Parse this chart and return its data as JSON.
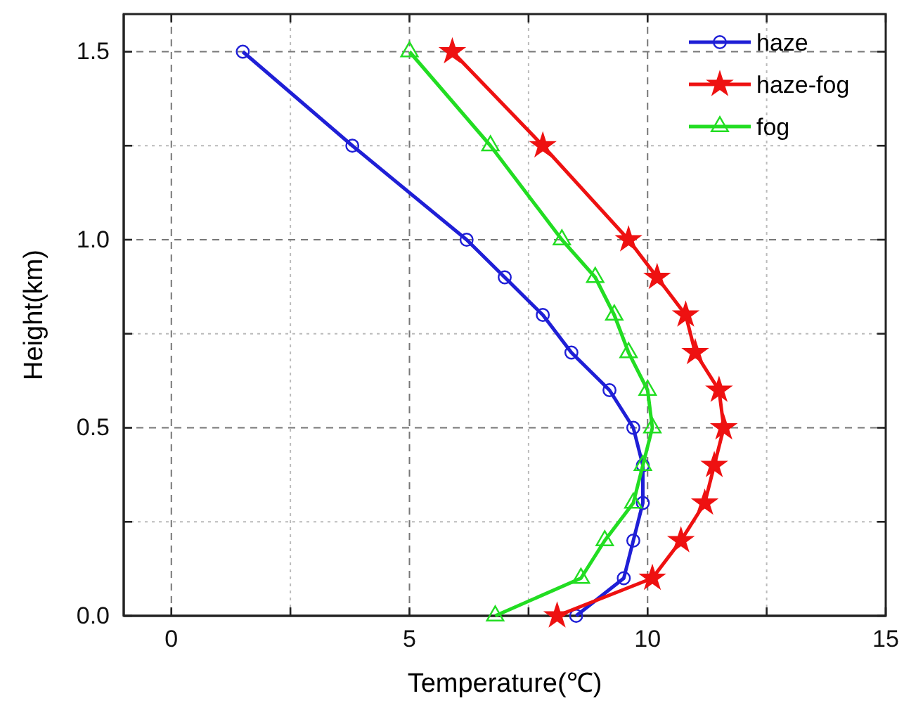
{
  "chart_data": {
    "type": "line",
    "xlabel": "Temperature(℃)",
    "ylabel": "Height(km)",
    "xlim": [
      -1,
      15
    ],
    "ylim": [
      0,
      1.6
    ],
    "xticks": [
      0,
      {
        "value": 2.5,
        "label": null
      },
      5,
      {
        "value": 7.5,
        "label": null
      },
      10,
      {
        "value": 12.5,
        "label": null
      },
      15
    ],
    "yticks": [
      {
        "value": 0,
        "label": "0.0"
      },
      {
        "value": 0.25,
        "label": null
      },
      0.5,
      {
        "value": 0.75,
        "label": null
      },
      {
        "value": 1,
        "label": "1.0"
      },
      {
        "value": 1.25,
        "label": null
      },
      1.5
    ],
    "grid": true,
    "legend": "top right",
    "series": [
      {
        "name": "haze",
        "color": "#1f1fd6",
        "marker": "circle",
        "x": [
          8.5,
          9.5,
          9.7,
          9.9,
          9.9,
          9.7,
          9.2,
          8.4,
          7.8,
          7.0,
          6.2,
          3.8,
          1.5
        ],
        "values": [
          0,
          0.1,
          0.2,
          0.3,
          0.4,
          0.5,
          0.6,
          0.7,
          0.8,
          0.9,
          1.0,
          1.25,
          1.5
        ]
      },
      {
        "name": "haze-fog",
        "color": "#ee1111",
        "marker": "star",
        "x": [
          8.1,
          10.1,
          10.7,
          11.2,
          11.4,
          11.6,
          11.5,
          11.0,
          10.8,
          10.2,
          9.6,
          7.8,
          5.9
        ],
        "values": [
          0,
          0.1,
          0.2,
          0.3,
          0.4,
          0.5,
          0.6,
          0.7,
          0.8,
          0.9,
          1.0,
          1.25,
          1.5
        ]
      },
      {
        "name": "fog",
        "color": "#22dd22",
        "marker": "triangle",
        "x": [
          6.8,
          8.6,
          9.1,
          9.7,
          9.9,
          10.1,
          10.0,
          9.6,
          9.3,
          8.9,
          8.2,
          6.7,
          5.0
        ],
        "values": [
          0,
          0.1,
          0.2,
          0.3,
          0.4,
          0.5,
          0.6,
          0.7,
          0.8,
          0.9,
          1.0,
          1.25,
          1.5
        ]
      }
    ]
  }
}
